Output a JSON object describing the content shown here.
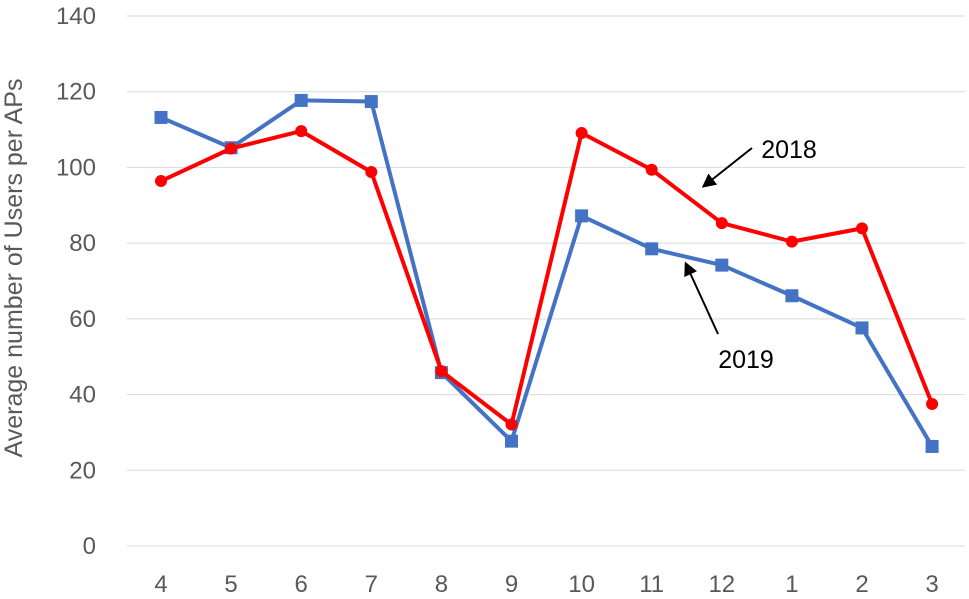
{
  "chart_data": {
    "type": "line",
    "title": "",
    "xlabel": "",
    "ylabel": "Average number of Users per APs",
    "categories": [
      "4",
      "5",
      "6",
      "7",
      "8",
      "9",
      "10",
      "11",
      "12",
      "1",
      "2",
      "3"
    ],
    "ylim": [
      0,
      140
    ],
    "yticks": [
      0,
      20,
      40,
      60,
      80,
      100,
      120,
      140
    ],
    "grid": "horizontal",
    "legend": "none",
    "series": [
      {
        "name": "2019",
        "color": "#4472C4",
        "marker": "square",
        "values": [
          113.2,
          105.2,
          117.7,
          117.4,
          45.8,
          27.7,
          87.2,
          78.5,
          74.2,
          66.1,
          57.6,
          26.3
        ]
      },
      {
        "name": "2018",
        "color": "#FF0000",
        "marker": "circle",
        "values": [
          96.4,
          105.0,
          109.6,
          98.8,
          46.2,
          32.1,
          109.1,
          99.4,
          85.3,
          80.4,
          83.9,
          37.5
        ]
      }
    ],
    "annotations": [
      {
        "text": "2018",
        "series": "2018",
        "arrow_to_category": "11"
      },
      {
        "text": "2019",
        "series": "2019",
        "arrow_to_category": "12"
      }
    ]
  }
}
